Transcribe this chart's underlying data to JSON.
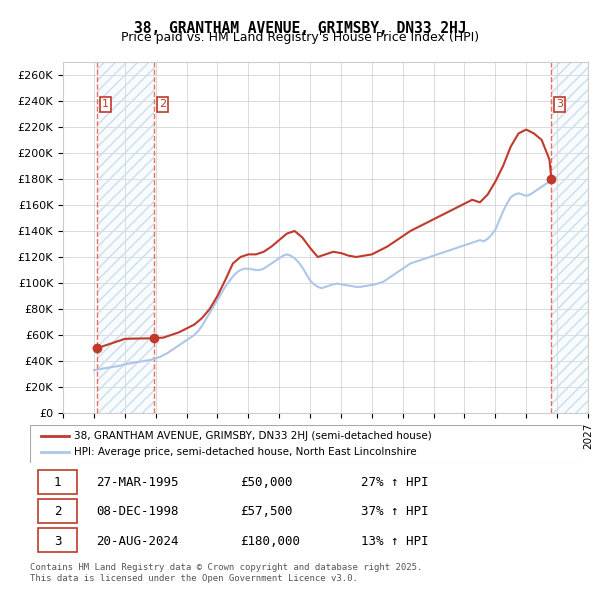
{
  "title1": "38, GRANTHAM AVENUE, GRIMSBY, DN33 2HJ",
  "title2": "Price paid vs. HM Land Registry's House Price Index (HPI)",
  "ylabel_ticks": [
    "£0",
    "£20K",
    "£40K",
    "£60K",
    "£80K",
    "£100K",
    "£120K",
    "£140K",
    "£160K",
    "£180K",
    "£200K",
    "£220K",
    "£240K",
    "£260K"
  ],
  "ytick_values": [
    0,
    20000,
    40000,
    60000,
    80000,
    100000,
    120000,
    140000,
    160000,
    180000,
    200000,
    220000,
    240000,
    260000
  ],
  "ylim": [
    0,
    270000
  ],
  "xmin": 1993.0,
  "xmax": 2027.0,
  "sale_dates": [
    1995.23,
    1998.92,
    2024.63
  ],
  "sale_prices": [
    50000,
    57500,
    180000
  ],
  "sale_labels": [
    "1",
    "2",
    "3"
  ],
  "hpi_line_color": "#aec6e8",
  "price_line_color": "#c0392b",
  "sale_marker_color": "#c0392b",
  "vline_color": "#e74c3c",
  "bg_hatch_color": "#dce9f5",
  "legend_label1": "38, GRANTHAM AVENUE, GRIMSBY, DN33 2HJ (semi-detached house)",
  "legend_label2": "HPI: Average price, semi-detached house, North East Lincolnshire",
  "table_data": [
    [
      "1",
      "27-MAR-1995",
      "£50,000",
      "27% ↑ HPI"
    ],
    [
      "2",
      "08-DEC-1998",
      "£57,500",
      "37% ↑ HPI"
    ],
    [
      "3",
      "20-AUG-2024",
      "£180,000",
      "13% ↑ HPI"
    ]
  ],
  "footnote": "Contains HM Land Registry data © Crown copyright and database right 2025.\nThis data is licensed under the Open Government Licence v3.0.",
  "hpi_data_x": [
    1995.0,
    1995.25,
    1995.5,
    1995.75,
    1996.0,
    1996.25,
    1996.5,
    1996.75,
    1997.0,
    1997.25,
    1997.5,
    1997.75,
    1998.0,
    1998.25,
    1998.5,
    1998.75,
    1999.0,
    1999.25,
    1999.5,
    1999.75,
    2000.0,
    2000.25,
    2000.5,
    2000.75,
    2001.0,
    2001.25,
    2001.5,
    2001.75,
    2002.0,
    2002.25,
    2002.5,
    2002.75,
    2003.0,
    2003.25,
    2003.5,
    2003.75,
    2004.0,
    2004.25,
    2004.5,
    2004.75,
    2005.0,
    2005.25,
    2005.5,
    2005.75,
    2006.0,
    2006.25,
    2006.5,
    2006.75,
    2007.0,
    2007.25,
    2007.5,
    2007.75,
    2008.0,
    2008.25,
    2008.5,
    2008.75,
    2009.0,
    2009.25,
    2009.5,
    2009.75,
    2010.0,
    2010.25,
    2010.5,
    2010.75,
    2011.0,
    2011.25,
    2011.5,
    2011.75,
    2012.0,
    2012.25,
    2012.5,
    2012.75,
    2013.0,
    2013.25,
    2013.5,
    2013.75,
    2014.0,
    2014.25,
    2014.5,
    2014.75,
    2015.0,
    2015.25,
    2015.5,
    2015.75,
    2016.0,
    2016.25,
    2016.5,
    2016.75,
    2017.0,
    2017.25,
    2017.5,
    2017.75,
    2018.0,
    2018.25,
    2018.5,
    2018.75,
    2019.0,
    2019.25,
    2019.5,
    2019.75,
    2020.0,
    2020.25,
    2020.5,
    2020.75,
    2021.0,
    2021.25,
    2021.5,
    2021.75,
    2022.0,
    2022.25,
    2022.5,
    2022.75,
    2023.0,
    2023.25,
    2023.5,
    2023.75,
    2024.0,
    2024.25,
    2024.5
  ],
  "hpi_data_y": [
    33000,
    33500,
    34000,
    34500,
    35000,
    35500,
    36000,
    36500,
    37500,
    38000,
    38500,
    39000,
    39500,
    40000,
    40500,
    41000,
    42000,
    43000,
    44500,
    46000,
    48000,
    50000,
    52000,
    54000,
    56000,
    58000,
    60000,
    63000,
    67000,
    72000,
    77000,
    82000,
    87000,
    92000,
    97000,
    101000,
    105000,
    108000,
    110000,
    111000,
    111000,
    110500,
    110000,
    110000,
    111000,
    113000,
    115000,
    117000,
    119000,
    121000,
    122000,
    121000,
    119000,
    116000,
    112000,
    107000,
    102000,
    99000,
    97000,
    96000,
    97000,
    98000,
    99000,
    99500,
    99000,
    98500,
    98000,
    97500,
    97000,
    97000,
    97500,
    98000,
    98500,
    99000,
    100000,
    101000,
    103000,
    105000,
    107000,
    109000,
    111000,
    113000,
    115000,
    116000,
    117000,
    118000,
    119000,
    120000,
    121000,
    122000,
    123000,
    124000,
    125000,
    126000,
    127000,
    128000,
    129000,
    130000,
    131000,
    132000,
    133000,
    132000,
    134000,
    137000,
    141000,
    148000,
    155000,
    161000,
    166000,
    168000,
    169000,
    168000,
    167000,
    168000,
    170000,
    172000,
    174000,
    176000,
    178000
  ],
  "price_data_x": [
    1995.0,
    1995.23,
    1995.5,
    1995.75,
    1996.0,
    1996.5,
    1997.0,
    1997.5,
    1998.0,
    1998.5,
    1998.92,
    1999.0,
    1999.5,
    2000.0,
    2000.5,
    2001.0,
    2001.5,
    2002.0,
    2002.5,
    2003.0,
    2003.5,
    2004.0,
    2004.5,
    2005.0,
    2005.5,
    2006.0,
    2006.5,
    2007.0,
    2007.5,
    2008.0,
    2008.5,
    2009.0,
    2009.5,
    2010.0,
    2010.5,
    2011.0,
    2011.5,
    2012.0,
    2012.5,
    2013.0,
    2013.5,
    2014.0,
    2014.5,
    2015.0,
    2015.5,
    2016.0,
    2016.5,
    2017.0,
    2017.5,
    2018.0,
    2018.5,
    2019.0,
    2019.5,
    2020.0,
    2020.5,
    2021.0,
    2021.5,
    2022.0,
    2022.5,
    2023.0,
    2023.5,
    2024.0,
    2024.5,
    2024.63
  ],
  "price_data_y": [
    50000,
    50000,
    51000,
    52000,
    53000,
    55000,
    57000,
    57200,
    57300,
    57400,
    57500,
    57600,
    58000,
    60000,
    62000,
    65000,
    68000,
    73000,
    80000,
    90000,
    102000,
    115000,
    120000,
    122000,
    122000,
    124000,
    128000,
    133000,
    138000,
    140000,
    135000,
    127000,
    120000,
    122000,
    124000,
    123000,
    121000,
    120000,
    121000,
    122000,
    125000,
    128000,
    132000,
    136000,
    140000,
    143000,
    146000,
    149000,
    152000,
    155000,
    158000,
    161000,
    164000,
    162000,
    168000,
    178000,
    190000,
    205000,
    215000,
    218000,
    215000,
    210000,
    195000,
    180000
  ]
}
